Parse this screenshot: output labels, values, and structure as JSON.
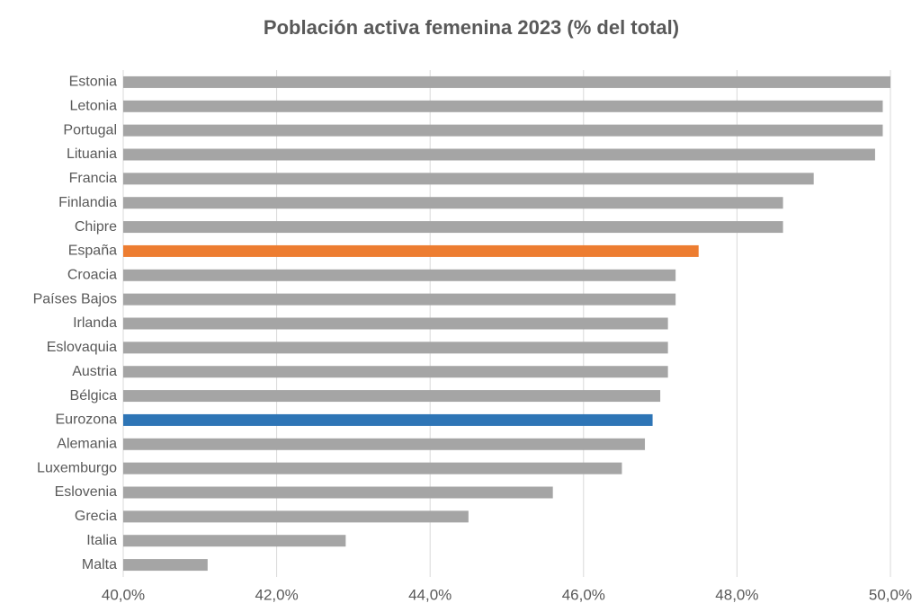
{
  "chart_data": {
    "type": "bar",
    "orientation": "horizontal",
    "title": "Población activa femenina 2023 (% del total)",
    "categories": [
      "Estonia",
      "Letonia",
      "Portugal",
      "Lituania",
      "Francia",
      "Finlandia",
      "Chipre",
      "España",
      "Croacia",
      "Países Bajos",
      "Irlanda",
      "Eslovaquia",
      "Austria",
      "Bélgica",
      "Eurozona",
      "Alemania",
      "Luxemburgo",
      "Eslovenia",
      "Grecia",
      "Italia",
      "Malta"
    ],
    "values": [
      50.0,
      49.9,
      49.9,
      49.8,
      49.0,
      48.6,
      48.6,
      47.5,
      47.2,
      47.2,
      47.1,
      47.1,
      47.1,
      47.0,
      46.9,
      46.8,
      46.5,
      45.6,
      44.5,
      42.9,
      41.1
    ],
    "colors": [
      "#a5a5a5",
      "#a5a5a5",
      "#a5a5a5",
      "#a5a5a5",
      "#a5a5a5",
      "#a5a5a5",
      "#a5a5a5",
      "#ed7d31",
      "#a5a5a5",
      "#a5a5a5",
      "#a5a5a5",
      "#a5a5a5",
      "#a5a5a5",
      "#a5a5a5",
      "#2e75b6",
      "#a5a5a5",
      "#a5a5a5",
      "#a5a5a5",
      "#a5a5a5",
      "#a5a5a5",
      "#a5a5a5"
    ],
    "xlim": [
      40,
      50
    ],
    "xticks": [
      {
        "value": 40,
        "label": "40,0%"
      },
      {
        "value": 42,
        "label": "42,0%"
      },
      {
        "value": 44,
        "label": "44,0%"
      },
      {
        "value": 46,
        "label": "46,0%"
      },
      {
        "value": 48,
        "label": "48,0%"
      },
      {
        "value": 50,
        "label": "50,0%"
      }
    ],
    "grid": true
  }
}
